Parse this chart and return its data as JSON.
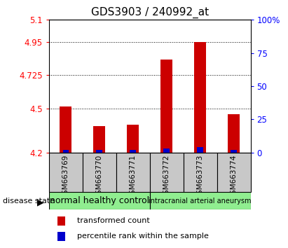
{
  "title": "GDS3903 / 240992_at",
  "samples": [
    "GSM663769",
    "GSM663770",
    "GSM663771",
    "GSM663772",
    "GSM663773",
    "GSM663774"
  ],
  "transformed_counts": [
    4.51,
    4.38,
    4.39,
    4.83,
    4.95,
    4.46
  ],
  "percentile_ranks": [
    2,
    2,
    2,
    3,
    4,
    2
  ],
  "ymin": 4.2,
  "ymax": 5.1,
  "yticks": [
    4.2,
    4.5,
    4.725,
    4.95,
    5.1
  ],
  "ytick_labels": [
    "4.2",
    "4.5",
    "4.725",
    "4.95",
    "5.1"
  ],
  "y2ticks": [
    0,
    25,
    50,
    75,
    100
  ],
  "y2tick_labels": [
    "0",
    "25",
    "50",
    "75",
    "100%"
  ],
  "group_bg_color": "#C8C8C8",
  "group1_label": "normal healthy control",
  "group2_label": "intracranial arterial aneurysm",
  "group_color": "#90EE90",
  "bar_width": 0.35,
  "blue_bar_width": 0.18,
  "red_bar_color": "#CC0000",
  "blue_bar_color": "#0000CC",
  "baseline": 4.2,
  "legend_red_label": "transformed count",
  "legend_blue_label": "percentile rank within the sample",
  "disease_state_label": "disease state",
  "title_fontsize": 11,
  "tick_fontsize": 8.5,
  "sample_fontsize": 7.5,
  "legend_fontsize": 8,
  "group_fontsize1": 9,
  "group_fontsize2": 7
}
